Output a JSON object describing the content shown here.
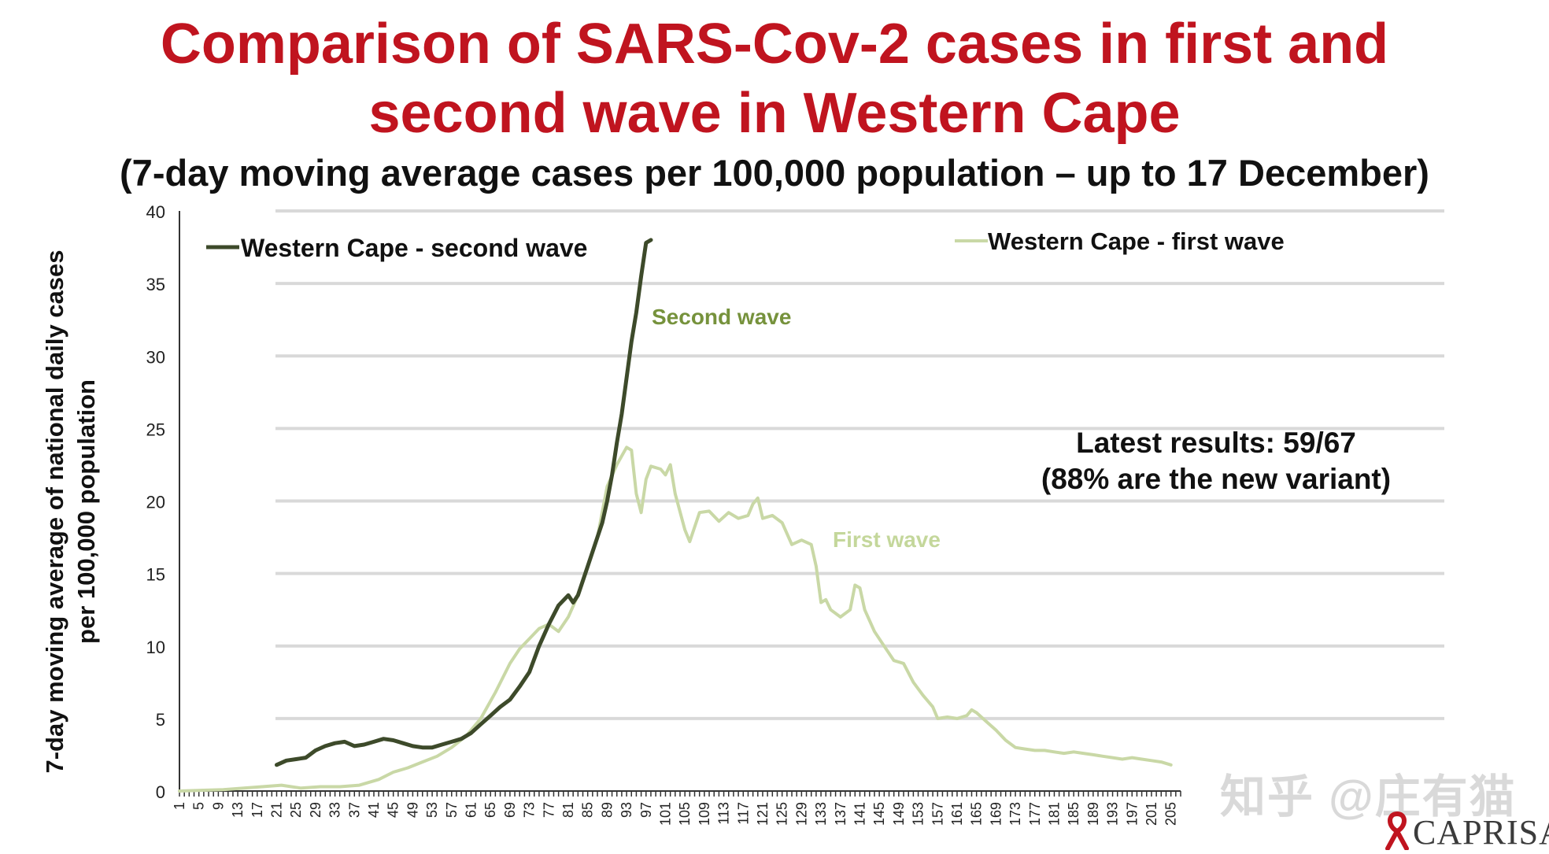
{
  "title_line1": "Comparison of SARS-Cov-2 cases in first and",
  "title_line2": "second wave in Western Cape",
  "subtitle": "(7-day moving average cases per 100,000 population – up to 17 December)",
  "ylabel_line1": "7-day moving  average of national daily cases",
  "ylabel_line2": "per 100,000 population",
  "annotation_latest_line1": "Latest results: 59/67",
  "annotation_latest_line2": "(88% are the new variant)",
  "watermark": "知乎 @庄有猫",
  "logo_text": "CAPRISA",
  "colors": {
    "title": "#c0141f",
    "second_wave": "#3d4a2a",
    "first_wave": "#c9d8a6",
    "second_wave_label": "#76923c",
    "first_wave_label": "#c4d79b",
    "grid": "#d9d9d9"
  },
  "chart_data": {
    "type": "line",
    "xlim": [
      1,
      207
    ],
    "ylim": [
      0,
      40
    ],
    "yticks": [
      0,
      5,
      10,
      15,
      20,
      25,
      30,
      35,
      40
    ],
    "xtick_labels": [
      "1",
      "5",
      "9",
      "13",
      "17",
      "21",
      "25",
      "29",
      "33",
      "37",
      "41",
      "45",
      "49",
      "53",
      "57",
      "61",
      "65",
      "69",
      "73",
      "77",
      "81",
      "85",
      "89",
      "93",
      "97",
      "101",
      "105",
      "109",
      "113",
      "117",
      "121",
      "125",
      "129",
      "133",
      "137",
      "141",
      "145",
      "149",
      "153",
      "157",
      "161",
      "165",
      "169",
      "173",
      "177",
      "181",
      "185",
      "189",
      "193",
      "197",
      "201",
      "205"
    ],
    "grid": "horizontal",
    "legend": [
      {
        "label": "Western Cape - second wave",
        "series": "second"
      },
      {
        "label": "Western Cape - first wave",
        "series": "first"
      }
    ],
    "annotations": [
      {
        "text": "Second wave",
        "series": "second"
      },
      {
        "text": "First wave",
        "series": "first"
      }
    ],
    "series": [
      {
        "name": "Western Cape - first wave",
        "key": "first",
        "points": [
          [
            1,
            0
          ],
          [
            10,
            0.1
          ],
          [
            18,
            0.3
          ],
          [
            22,
            0.4
          ],
          [
            26,
            0.2
          ],
          [
            30,
            0.3
          ],
          [
            34,
            0.3
          ],
          [
            38,
            0.4
          ],
          [
            42,
            0.8
          ],
          [
            45,
            1.3
          ],
          [
            48,
            1.6
          ],
          [
            51,
            2.0
          ],
          [
            54,
            2.4
          ],
          [
            57,
            3.0
          ],
          [
            60,
            3.8
          ],
          [
            63,
            5.0
          ],
          [
            66,
            6.8
          ],
          [
            69,
            8.8
          ],
          [
            71,
            9.8
          ],
          [
            73,
            10.5
          ],
          [
            75,
            11.2
          ],
          [
            77,
            11.5
          ],
          [
            79,
            11.0
          ],
          [
            81,
            12.0
          ],
          [
            83,
            13.5
          ],
          [
            85,
            15.5
          ],
          [
            87,
            17.5
          ],
          [
            89,
            21.0
          ],
          [
            91,
            22.5
          ],
          [
            93,
            23.7
          ],
          [
            94,
            23.5
          ],
          [
            95,
            20.5
          ],
          [
            96,
            19.2
          ],
          [
            97,
            21.5
          ],
          [
            98,
            22.4
          ],
          [
            100,
            22.2
          ],
          [
            101,
            21.8
          ],
          [
            102,
            22.5
          ],
          [
            103,
            20.5
          ],
          [
            105,
            18.0
          ],
          [
            106,
            17.2
          ],
          [
            108,
            19.2
          ],
          [
            110,
            19.3
          ],
          [
            112,
            18.6
          ],
          [
            114,
            19.2
          ],
          [
            116,
            18.8
          ],
          [
            118,
            19.0
          ],
          [
            119,
            19.8
          ],
          [
            120,
            20.2
          ],
          [
            121,
            18.8
          ],
          [
            123,
            19.0
          ],
          [
            125,
            18.5
          ],
          [
            127,
            17.0
          ],
          [
            129,
            17.3
          ],
          [
            131,
            17.0
          ],
          [
            132,
            15.5
          ],
          [
            133,
            13.0
          ],
          [
            134,
            13.2
          ],
          [
            135,
            12.5
          ],
          [
            137,
            12.0
          ],
          [
            139,
            12.5
          ],
          [
            140,
            14.2
          ],
          [
            141,
            14.0
          ],
          [
            142,
            12.5
          ],
          [
            144,
            11.0
          ],
          [
            146,
            10.0
          ],
          [
            148,
            9.0
          ],
          [
            150,
            8.8
          ],
          [
            152,
            7.5
          ],
          [
            154,
            6.6
          ],
          [
            156,
            5.8
          ],
          [
            157,
            5.0
          ],
          [
            159,
            5.1
          ],
          [
            161,
            5.0
          ],
          [
            163,
            5.2
          ],
          [
            164,
            5.6
          ],
          [
            165,
            5.4
          ],
          [
            167,
            4.8
          ],
          [
            169,
            4.2
          ],
          [
            171,
            3.5
          ],
          [
            173,
            3.0
          ],
          [
            175,
            2.9
          ],
          [
            177,
            2.8
          ],
          [
            179,
            2.8
          ],
          [
            181,
            2.7
          ],
          [
            183,
            2.6
          ],
          [
            185,
            2.7
          ],
          [
            187,
            2.6
          ],
          [
            189,
            2.5
          ],
          [
            191,
            2.4
          ],
          [
            193,
            2.3
          ],
          [
            195,
            2.2
          ],
          [
            197,
            2.3
          ],
          [
            199,
            2.2
          ],
          [
            201,
            2.1
          ],
          [
            203,
            2.0
          ],
          [
            205,
            1.8
          ]
        ]
      },
      {
        "name": "Western Cape - second wave",
        "key": "second",
        "points": [
          [
            21,
            1.8
          ],
          [
            23,
            2.1
          ],
          [
            25,
            2.2
          ],
          [
            27,
            2.3
          ],
          [
            29,
            2.8
          ],
          [
            31,
            3.1
          ],
          [
            33,
            3.3
          ],
          [
            35,
            3.4
          ],
          [
            37,
            3.1
          ],
          [
            39,
            3.2
          ],
          [
            41,
            3.4
          ],
          [
            43,
            3.6
          ],
          [
            45,
            3.5
          ],
          [
            47,
            3.3
          ],
          [
            49,
            3.1
          ],
          [
            51,
            3.0
          ],
          [
            53,
            3.0
          ],
          [
            55,
            3.2
          ],
          [
            57,
            3.4
          ],
          [
            59,
            3.6
          ],
          [
            61,
            4.0
          ],
          [
            63,
            4.6
          ],
          [
            65,
            5.2
          ],
          [
            67,
            5.8
          ],
          [
            69,
            6.3
          ],
          [
            71,
            7.2
          ],
          [
            73,
            8.2
          ],
          [
            75,
            10.0
          ],
          [
            77,
            11.5
          ],
          [
            79,
            12.8
          ],
          [
            81,
            13.5
          ],
          [
            82,
            13.0
          ],
          [
            83,
            13.5
          ],
          [
            85,
            15.5
          ],
          [
            87,
            17.5
          ],
          [
            88,
            18.5
          ],
          [
            89,
            20.0
          ],
          [
            90,
            21.8
          ],
          [
            91,
            24.0
          ],
          [
            92,
            26.0
          ],
          [
            93,
            28.5
          ],
          [
            94,
            31.0
          ],
          [
            95,
            33.0
          ],
          [
            96,
            35.5
          ],
          [
            97,
            37.8
          ],
          [
            98,
            38.0
          ]
        ]
      }
    ]
  }
}
